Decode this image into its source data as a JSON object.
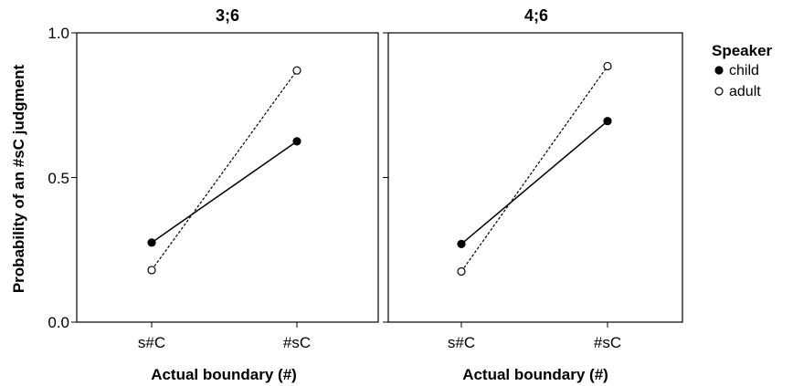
{
  "chart_data": {
    "type": "line",
    "ylabel": "Probability of an #sC judgment",
    "ylim": [
      0.0,
      1.0
    ],
    "yticks": [
      "0.0",
      "0.5",
      "1.0"
    ],
    "yticks_values": [
      0.0,
      0.5,
      1.0
    ],
    "legend": {
      "title": "Speaker",
      "placement": "right",
      "items": [
        {
          "label": "child",
          "marker": "filled-circle",
          "line": "solid"
        },
        {
          "label": "adult",
          "marker": "open-circle",
          "line": "dashed"
        }
      ]
    },
    "panels": [
      {
        "title": "3;6",
        "xlabel": "Actual boundary (#)",
        "categories": [
          "s#C",
          "#sC"
        ],
        "series": [
          {
            "name": "child",
            "values": [
              0.275,
              0.625
            ]
          },
          {
            "name": "adult",
            "values": [
              0.18,
              0.87
            ]
          }
        ]
      },
      {
        "title": "4;6",
        "xlabel": "Actual boundary (#)",
        "categories": [
          "s#C",
          "#sC"
        ],
        "series": [
          {
            "name": "child",
            "values": [
              0.27,
              0.695
            ]
          },
          {
            "name": "adult",
            "values": [
              0.175,
              0.885
            ]
          }
        ]
      }
    ],
    "grid": false
  }
}
